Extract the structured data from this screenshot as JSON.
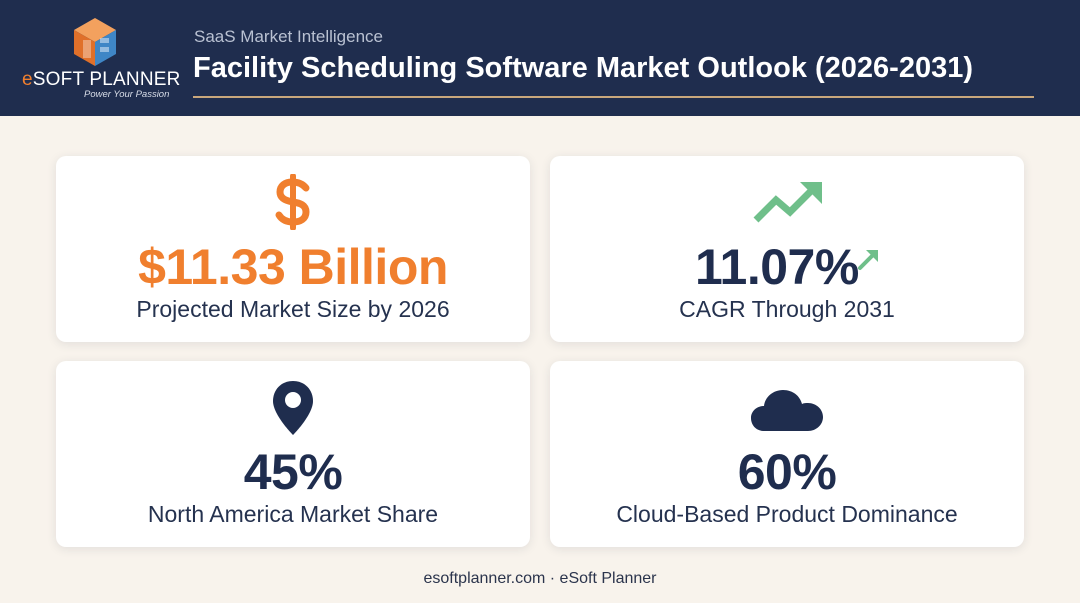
{
  "header": {
    "logo": {
      "name_prefix": "e",
      "name_rest": "SOFT PLANNER",
      "tagline": "Power Your Passion"
    },
    "subtitle": "SaaS Market Intelligence",
    "title": "Facility Scheduling Software Market Outlook (2026-2031)"
  },
  "cards": [
    {
      "icon": "dollar-sign-icon",
      "value": "$11.33 Billion",
      "label": "Projected Market Size by 2026",
      "color": "#f07f2e"
    },
    {
      "icon": "trending-up-icon",
      "value": "11.07%",
      "label": "CAGR Through 2031",
      "color": "#1f2d4e",
      "accent_icon": "arrow-up-right-icon",
      "accent_color": "#6fbf8a"
    },
    {
      "icon": "map-pin-icon",
      "value": "45%",
      "label": "North America Market Share",
      "color": "#1f2d4e"
    },
    {
      "icon": "cloud-icon",
      "value": "60%",
      "label": "Cloud-Based Product Dominance",
      "color": "#1f2d4e"
    }
  ],
  "footer": "esoftplanner.com · eSoft Planner",
  "colors": {
    "navy": "#1f2d4e",
    "orange": "#f07f2e",
    "green": "#6fbf8a",
    "background": "#f8f3ec"
  }
}
